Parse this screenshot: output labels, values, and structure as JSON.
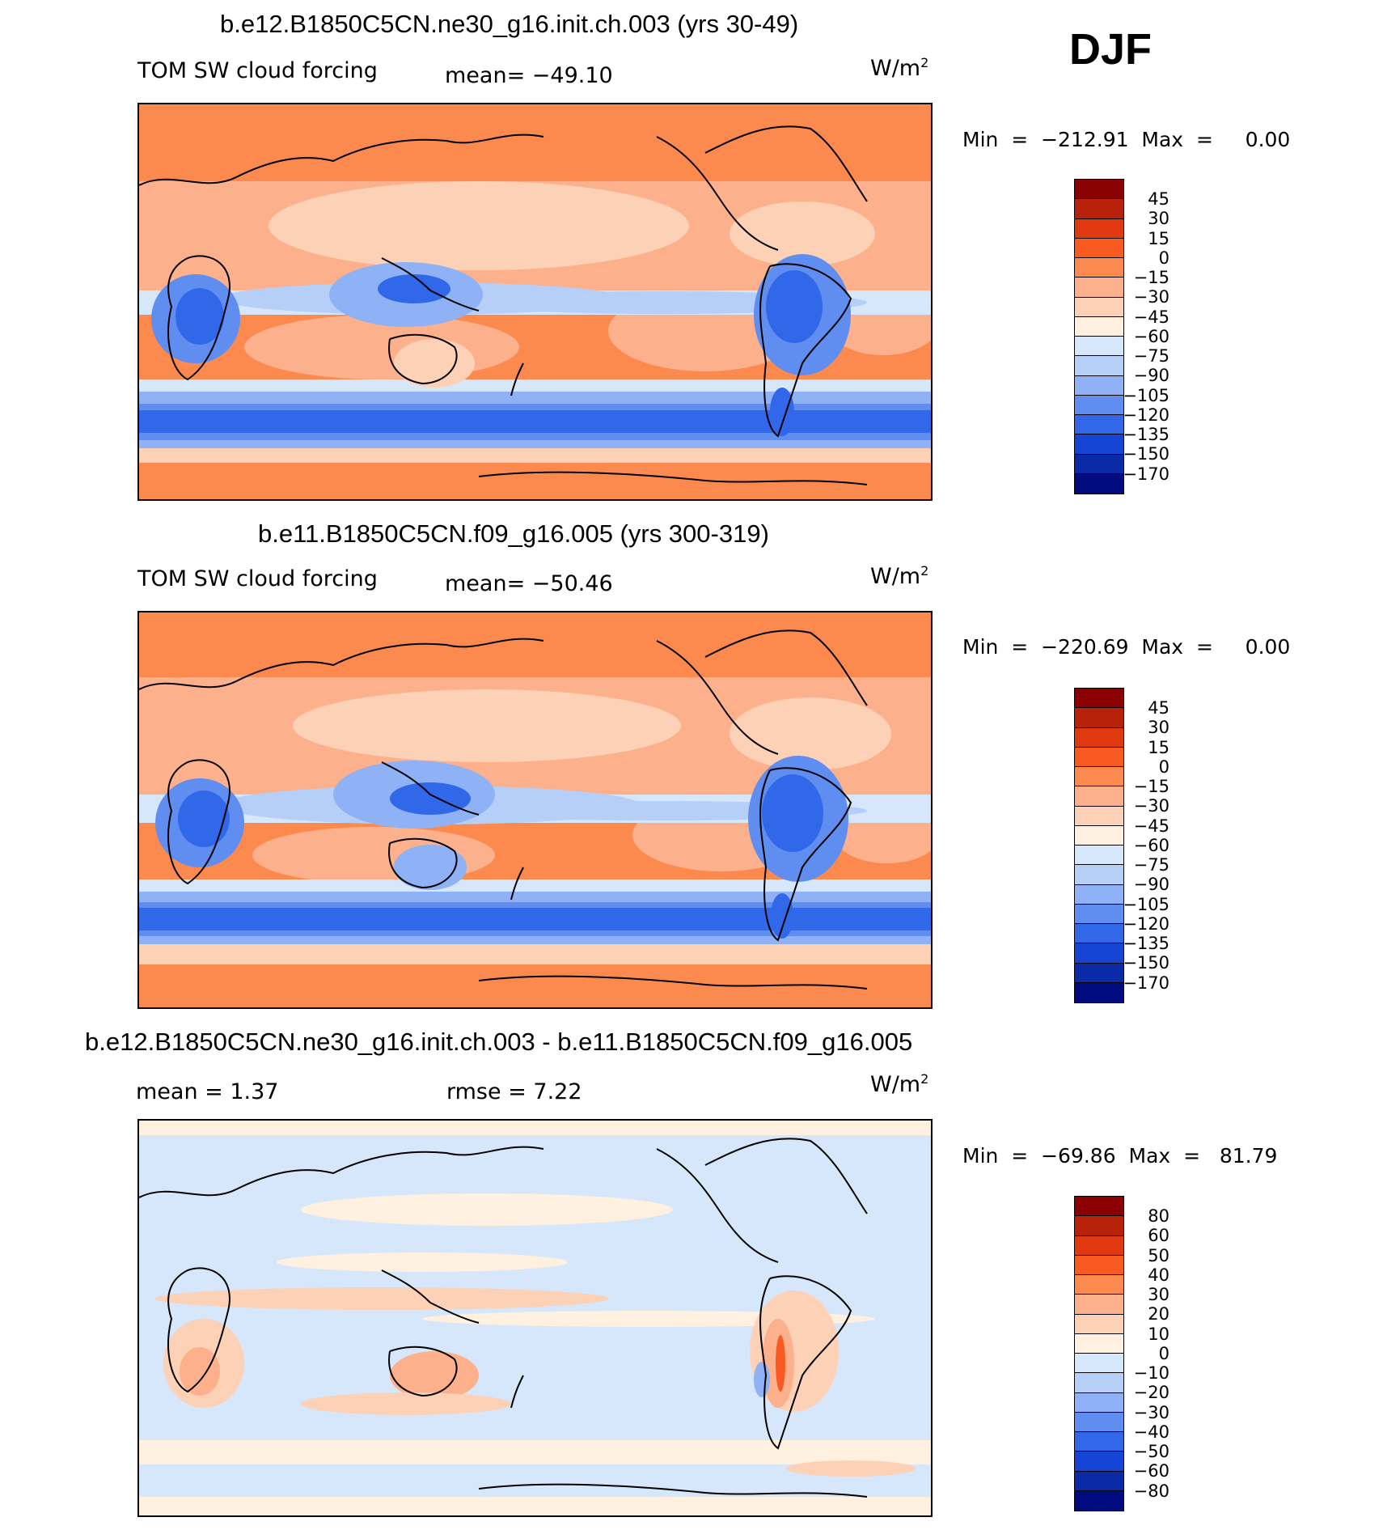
{
  "season": "DJF",
  "panels": [
    {
      "id": "top",
      "title": "b.e12.B1850C5CN.ne30_g16.init.ch.003 (yrs 30-49)",
      "variable": "TOM SW cloud forcing",
      "stat_text": "mean= −49.10",
      "units": "W/m",
      "units_sup": "2",
      "minmax": "Min  =  −212.91  Max  =     0.00",
      "colorbar_key": "abs"
    },
    {
      "id": "middle",
      "title": "b.e11.B1850C5CN.f09_g16.005 (yrs 300-319)",
      "variable": "TOM SW cloud forcing",
      "stat_text": "mean= −50.46",
      "units": "W/m",
      "units_sup": "2",
      "minmax": "Min  =  −220.69  Max  =     0.00",
      "colorbar_key": "abs"
    },
    {
      "id": "bottom",
      "title": "b.e12.B1850C5CN.ne30_g16.init.ch.003 - b.e11.B1850C5CN.f09_g16.005",
      "mean_text": "mean  =     1.37",
      "rmse_text": "rmse  =     7.22",
      "units": "W/m",
      "units_sup": "2",
      "minmax": "Min  =  −69.86  Max  =   81.79",
      "colorbar_key": "diff"
    }
  ],
  "colorbars": {
    "abs": {
      "levels": [
        "45",
        "30",
        "15",
        "0",
        "−15",
        "−30",
        "−45",
        "−60",
        "−75",
        "−90",
        "−105",
        "−120",
        "−135",
        "−150",
        "−170"
      ],
      "colors": [
        "#8b0000",
        "#b8220b",
        "#e0380f",
        "#f85a22",
        "#fc8a4f",
        "#fdb08c",
        "#fdd1b6",
        "#fff0df",
        "#d6e7fb",
        "#b5cff8",
        "#8eb2f5",
        "#5f8ef0",
        "#3168ea",
        "#1645d6",
        "#0a2aa8",
        "#000b80"
      ]
    },
    "diff": {
      "levels": [
        "80",
        "60",
        "50",
        "40",
        "30",
        "20",
        "10",
        "0",
        "−10",
        "−20",
        "−30",
        "−40",
        "−50",
        "−60",
        "−80"
      ],
      "colors": [
        "#8b0000",
        "#b8220b",
        "#e0380f",
        "#f85a22",
        "#fc8a4f",
        "#fdb08c",
        "#fdd1b6",
        "#fff0df",
        "#d6e7fb",
        "#b5cff8",
        "#8eb2f5",
        "#5f8ef0",
        "#3168ea",
        "#1645d6",
        "#0a2aa8",
        "#000b80"
      ]
    }
  }
}
